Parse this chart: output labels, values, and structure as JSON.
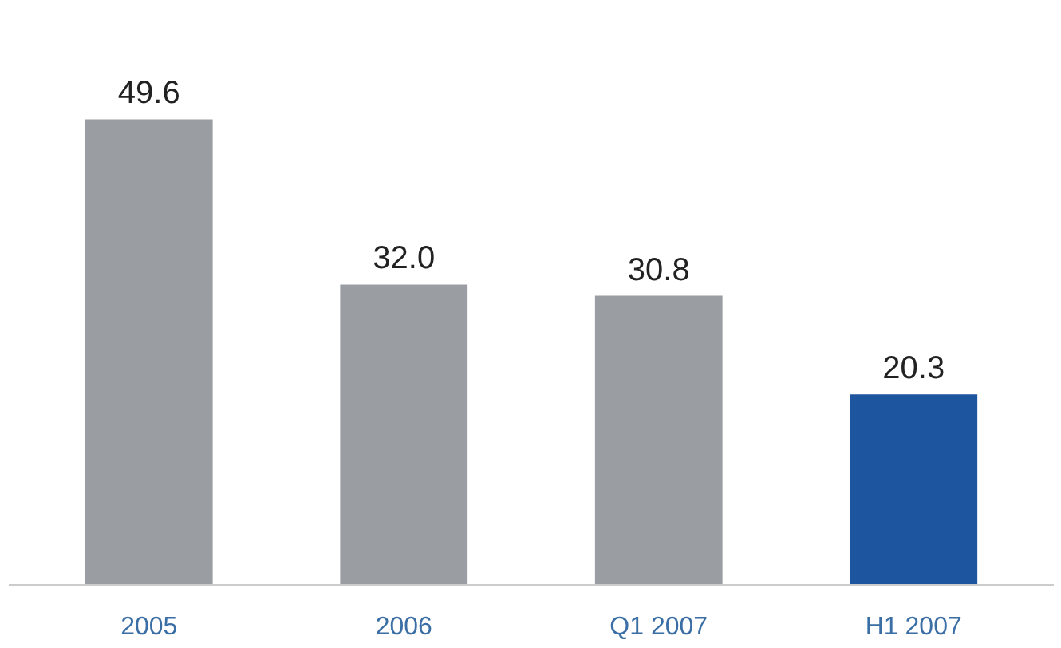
{
  "chart_data": {
    "type": "bar",
    "categories": [
      "2005",
      "2006",
      "Q1 2007",
      "H1 2007"
    ],
    "values": [
      49.6,
      32.0,
      30.8,
      20.3
    ],
    "colors": [
      "#9a9ea3",
      "#9a9ea3",
      "#9a9ea3",
      "#1d559e"
    ],
    "value_labels": [
      "49.6",
      "32.0",
      "30.8",
      "20.3"
    ]
  }
}
